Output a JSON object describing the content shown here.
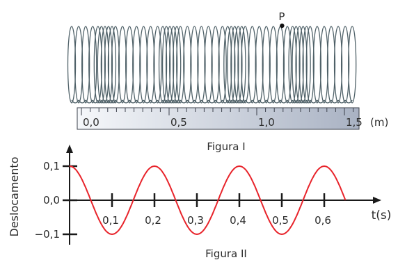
{
  "figure_1": {
    "point_label": "P",
    "ruler_ticks": [
      "0,0",
      "0,5",
      "1,0",
      "1,5"
    ],
    "ruler_unit": "(m)",
    "caption": "Figura I",
    "spring": {
      "coil_positions_m": [
        0.0,
        0.04,
        0.08,
        0.12,
        0.15,
        0.17,
        0.19,
        0.21,
        0.23,
        0.25,
        0.29,
        0.33,
        0.37,
        0.41,
        0.45,
        0.49,
        0.52,
        0.54,
        0.56,
        0.58,
        0.6,
        0.62,
        0.66,
        0.7,
        0.74,
        0.78,
        0.82,
        0.86,
        0.89,
        0.91,
        0.93,
        0.95,
        0.97,
        0.99,
        1.03,
        1.07,
        1.11,
        1.15,
        1.19,
        1.23,
        1.26,
        1.28,
        1.3,
        1.32,
        1.34,
        1.36,
        1.4,
        1.44,
        1.48,
        1.52,
        1.56,
        1.6
      ],
      "point_P_position_m": 1.18
    }
  },
  "chart_data": {
    "type": "line",
    "ylabel": "Deslocamento",
    "xlabel": "t(s)",
    "x_ticks": [
      "0,1",
      "0,2",
      "0,3",
      "0,4",
      "0,5",
      "0,6"
    ],
    "y_ticks": [
      "0,1",
      "0,0",
      "−0,1"
    ],
    "xlim": [
      0,
      0.65
    ],
    "ylim": [
      -0.1,
      0.1
    ],
    "series": [
      {
        "x": [
          0.0,
          0.025,
          0.05,
          0.075,
          0.1,
          0.125,
          0.15,
          0.175,
          0.2,
          0.225,
          0.25,
          0.275,
          0.3,
          0.325,
          0.35,
          0.375,
          0.4,
          0.425,
          0.45,
          0.475,
          0.5,
          0.525,
          0.55,
          0.575,
          0.6,
          0.625,
          0.65
        ],
        "values": [
          0.1,
          0.071,
          0.0,
          -0.071,
          -0.1,
          -0.071,
          0.0,
          0.071,
          0.1,
          0.071,
          0.0,
          -0.071,
          -0.1,
          -0.071,
          0.0,
          0.071,
          0.1,
          0.071,
          0.0,
          -0.071,
          -0.1,
          -0.071,
          0.0,
          0.071,
          0.1,
          0.071,
          0.055
        ]
      }
    ],
    "line_color": "#e8242b",
    "caption": "Figura II"
  }
}
